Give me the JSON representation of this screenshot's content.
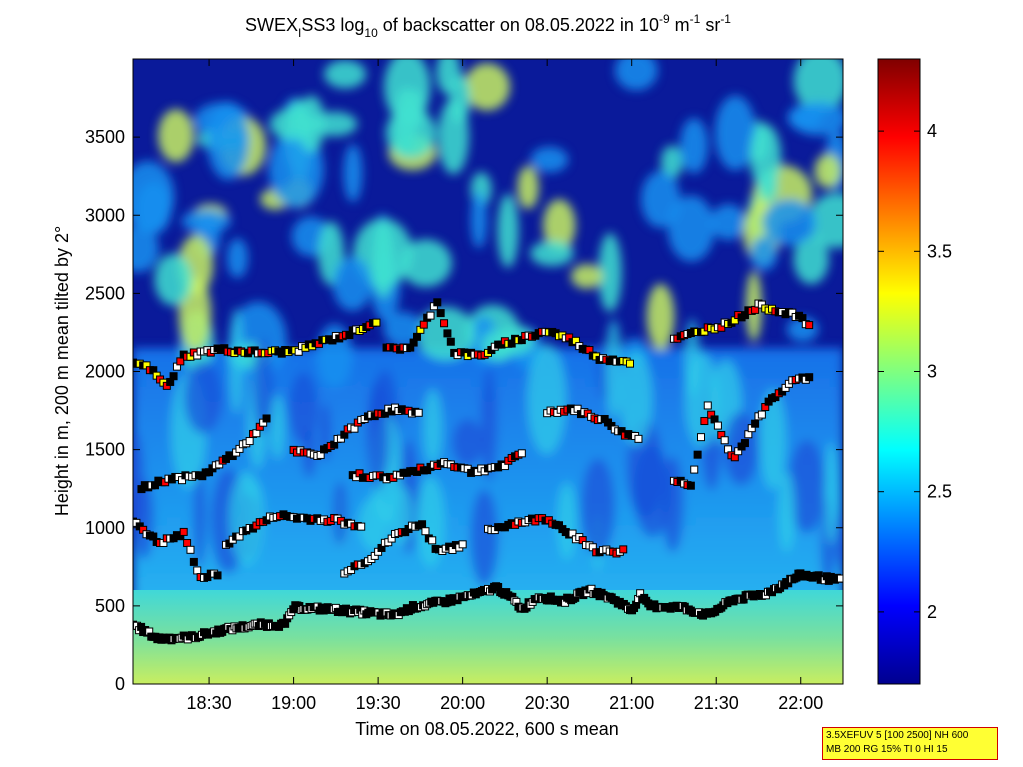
{
  "chart_data": {
    "type": "heatmap",
    "title": {
      "prefix": "SWEX",
      "sub_i": "I",
      "mid": "SS3 log",
      "sub_10": "10",
      "rest": " of backscatter on 08.05.2022 in 10",
      "sup_neg9": "-9",
      "unit_m": " m",
      "sup_neg1a": "-1",
      "unit_sr": " sr",
      "sup_neg1b": "-1"
    },
    "xlabel": "Time on 08.05.2022, 600 s mean",
    "ylabel": "Height in m, 200 m mean tilted by 2°",
    "x_ticks": [
      "18:30",
      "19:00",
      "19:30",
      "20:00",
      "20:30",
      "21:00",
      "21:30",
      "22:00"
    ],
    "x_tick_values_hours": [
      18.5,
      19.0,
      19.5,
      20.0,
      20.5,
      21.0,
      21.5,
      22.0
    ],
    "xlim_hours": [
      18.05,
      22.25
    ],
    "y_ticks": [
      0,
      500,
      1000,
      1500,
      2000,
      2500,
      3000,
      3500
    ],
    "ylim": [
      0,
      4000
    ],
    "colorbar": {
      "ticks": [
        2,
        2.5,
        3,
        3.5,
        4
      ],
      "range": [
        1.7,
        4.3
      ]
    },
    "boundary_layer": [
      {
        "t": 18.05,
        "h": 380
      },
      {
        "t": 18.2,
        "h": 290
      },
      {
        "t": 18.4,
        "h": 300
      },
      {
        "t": 18.6,
        "h": 350
      },
      {
        "t": 18.8,
        "h": 380
      },
      {
        "t": 18.95,
        "h": 380
      },
      {
        "t": 19.0,
        "h": 490
      },
      {
        "t": 19.2,
        "h": 480
      },
      {
        "t": 19.4,
        "h": 460
      },
      {
        "t": 19.6,
        "h": 440
      },
      {
        "t": 19.7,
        "h": 490
      },
      {
        "t": 19.9,
        "h": 530
      },
      {
        "t": 20.1,
        "h": 580
      },
      {
        "t": 20.2,
        "h": 620
      },
      {
        "t": 20.3,
        "h": 540
      },
      {
        "t": 20.35,
        "h": 480
      },
      {
        "t": 20.45,
        "h": 560
      },
      {
        "t": 20.6,
        "h": 530
      },
      {
        "t": 20.75,
        "h": 600
      },
      {
        "t": 20.9,
        "h": 540
      },
      {
        "t": 21.0,
        "h": 470
      },
      {
        "t": 21.05,
        "h": 570
      },
      {
        "t": 21.1,
        "h": 500
      },
      {
        "t": 21.3,
        "h": 490
      },
      {
        "t": 21.45,
        "h": 440
      },
      {
        "t": 21.6,
        "h": 540
      },
      {
        "t": 21.8,
        "h": 580
      },
      {
        "t": 22.0,
        "h": 700
      },
      {
        "t": 22.25,
        "h": 660
      }
    ],
    "cloud_layers": [
      [
        {
          "t": 18.05,
          "h": 2060
        },
        {
          "t": 18.15,
          "h": 2020
        },
        {
          "t": 18.25,
          "h": 1900
        },
        {
          "t": 18.35,
          "h": 2100
        },
        {
          "t": 18.55,
          "h": 2140
        },
        {
          "t": 18.8,
          "h": 2120
        },
        {
          "t": 19.0,
          "h": 2130
        },
        {
          "t": 19.2,
          "h": 2200
        },
        {
          "t": 19.35,
          "h": 2250
        },
        {
          "t": 19.5,
          "h": 2330
        }
      ],
      [
        {
          "t": 19.55,
          "h": 2140
        },
        {
          "t": 19.7,
          "h": 2160
        },
        {
          "t": 19.85,
          "h": 2450
        },
        {
          "t": 19.95,
          "h": 2120
        },
        {
          "t": 20.1,
          "h": 2100
        },
        {
          "t": 20.25,
          "h": 2180
        },
        {
          "t": 20.5,
          "h": 2260
        },
        {
          "t": 20.65,
          "h": 2200
        },
        {
          "t": 20.8,
          "h": 2090
        },
        {
          "t": 21.0,
          "h": 2060
        }
      ],
      [
        {
          "t": 21.25,
          "h": 2200
        },
        {
          "t": 21.4,
          "h": 2260
        },
        {
          "t": 21.55,
          "h": 2300
        },
        {
          "t": 21.75,
          "h": 2420
        },
        {
          "t": 21.95,
          "h": 2370
        },
        {
          "t": 22.05,
          "h": 2300
        }
      ],
      [
        {
          "t": 18.1,
          "h": 1250
        },
        {
          "t": 18.25,
          "h": 1310
        },
        {
          "t": 18.45,
          "h": 1330
        },
        {
          "t": 18.55,
          "h": 1400
        },
        {
          "t": 18.7,
          "h": 1520
        },
        {
          "t": 18.85,
          "h": 1700
        }
      ],
      [
        {
          "t": 19.0,
          "h": 1490
        },
        {
          "t": 19.15,
          "h": 1460
        },
        {
          "t": 19.3,
          "h": 1600
        },
        {
          "t": 19.45,
          "h": 1720
        },
        {
          "t": 19.6,
          "h": 1760
        },
        {
          "t": 19.75,
          "h": 1720
        }
      ],
      [
        {
          "t": 19.35,
          "h": 1340
        },
        {
          "t": 19.55,
          "h": 1320
        },
        {
          "t": 19.75,
          "h": 1370
        },
        {
          "t": 19.9,
          "h": 1420
        },
        {
          "t": 20.05,
          "h": 1360
        },
        {
          "t": 20.25,
          "h": 1400
        },
        {
          "t": 20.35,
          "h": 1480
        }
      ],
      [
        {
          "t": 20.5,
          "h": 1740
        },
        {
          "t": 20.65,
          "h": 1760
        },
        {
          "t": 20.85,
          "h": 1680
        },
        {
          "t": 20.95,
          "h": 1600
        },
        {
          "t": 21.05,
          "h": 1580
        }
      ],
      [
        {
          "t": 21.25,
          "h": 1300
        },
        {
          "t": 21.35,
          "h": 1280
        },
        {
          "t": 21.45,
          "h": 1780
        },
        {
          "t": 21.6,
          "h": 1430
        },
        {
          "t": 21.8,
          "h": 1790
        },
        {
          "t": 21.95,
          "h": 1950
        },
        {
          "t": 22.05,
          "h": 1950
        }
      ],
      [
        {
          "t": 18.05,
          "h": 1050
        },
        {
          "t": 18.2,
          "h": 900
        },
        {
          "t": 18.35,
          "h": 960
        },
        {
          "t": 18.45,
          "h": 680
        },
        {
          "t": 18.55,
          "h": 700
        }
      ],
      [
        {
          "t": 18.6,
          "h": 900
        },
        {
          "t": 18.75,
          "h": 1000
        },
        {
          "t": 18.9,
          "h": 1080
        },
        {
          "t": 19.05,
          "h": 1060
        },
        {
          "t": 19.25,
          "h": 1050
        },
        {
          "t": 19.4,
          "h": 1000
        }
      ],
      [
        {
          "t": 19.3,
          "h": 720
        },
        {
          "t": 19.45,
          "h": 800
        },
        {
          "t": 19.6,
          "h": 950
        },
        {
          "t": 19.75,
          "h": 1030
        },
        {
          "t": 19.85,
          "h": 860
        },
        {
          "t": 20.0,
          "h": 880
        }
      ],
      [
        {
          "t": 20.15,
          "h": 980
        },
        {
          "t": 20.3,
          "h": 1030
        },
        {
          "t": 20.5,
          "h": 1060
        },
        {
          "t": 20.8,
          "h": 850
        },
        {
          "t": 20.95,
          "h": 850
        }
      ]
    ]
  },
  "info_box": {
    "line1": "3.5XEFUV 5 [100 2500] NH 600",
    "line2": "MB 200 RG 15% TI 0 HI 15"
  }
}
